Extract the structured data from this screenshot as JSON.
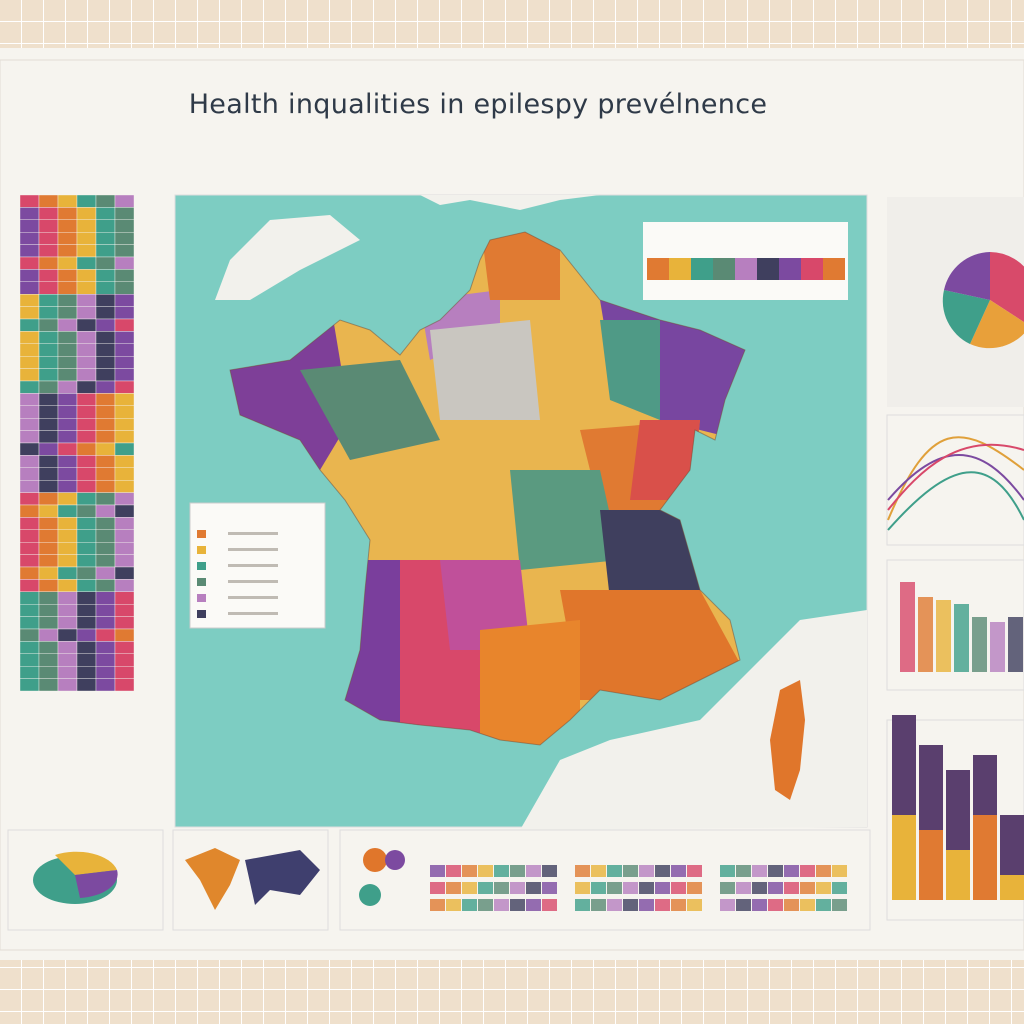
{
  "header": {
    "title": "Health inqualities in epilespy prevélnence"
  }
}
